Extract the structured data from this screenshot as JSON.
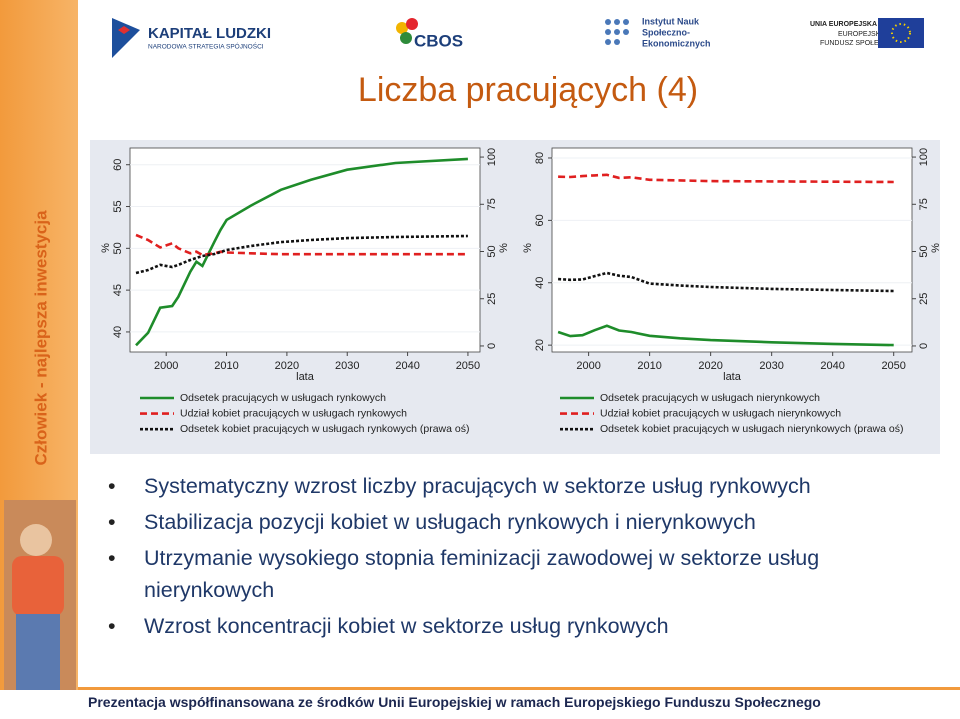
{
  "logos": {
    "kapital_ludzki": [
      "KAPITAŁ LUDZKI",
      "NARODOWA STRATEGIA SPÓJNOŚCI"
    ],
    "cbos": "CBOS",
    "isns": [
      "Instytut Nauk",
      "Społeczno-",
      "Ekonomicznych"
    ],
    "eu": [
      "UNIA EUROPEJSKA",
      "EUROPEJSKI",
      "FUNDUSZ SPOŁECZNY"
    ]
  },
  "sidebar": "Człowiek - najlepsza inwestycja",
  "title": "Liczba pracujących (4)",
  "bullets": [
    "Systematyczny wzrost liczby pracujących w sektorze usług rynkowych",
    "Stabilizacja pozycji kobiet w usługach rynkowych i nierynkowych",
    "Utrzymanie wysokiego stopnia feminizacji zawodowej w sektorze usług nierynkowych",
    "Wzrost koncentracji kobiet w sektorze usług rynkowych"
  ],
  "footer": "Prezentacja współfinansowana ze środków Unii Europejskiej w ramach Europejskiego Funduszu Społecznego",
  "chart_data": [
    {
      "type": "line",
      "xlabel": "lata",
      "ylabel": "%",
      "y2label": "%",
      "x": [
        1995,
        1997,
        1999,
        2001,
        2002,
        2004,
        2005,
        2006,
        2008,
        2009,
        2010,
        2014,
        2019,
        2024,
        2030,
        2038,
        2050
      ],
      "xlim": [
        1994,
        2052
      ],
      "xticks": [
        2000,
        2010,
        2020,
        2030,
        2040,
        2050
      ],
      "ylim": [
        37.6,
        62
      ],
      "yticks": [
        40,
        45,
        50,
        55,
        60
      ],
      "y2lim": [
        -3.2,
        104.8
      ],
      "y2ticks": [
        0,
        25,
        50,
        75,
        100
      ],
      "grid": true,
      "series": [
        {
          "name": "Odsetek pracujących w usługach rynkowych",
          "color": "#1e8c2a",
          "style": "solid",
          "values": [
            38.4,
            39.9,
            42.9,
            43.1,
            44.2,
            47.2,
            48.4,
            47.9,
            50.8,
            52.2,
            53.4,
            55.1,
            57.0,
            58.2,
            59.4,
            60.2,
            60.7
          ]
        },
        {
          "name": "Udział kobiet pracujących w usługach rynkowych",
          "color": "#e02020",
          "style": "dash",
          "values": [
            51.6,
            51.0,
            50.1,
            50.6,
            50.0,
            49.4,
            49.6,
            49.2,
            49.4,
            49.6,
            49.5,
            49.4,
            49.3,
            49.3,
            49.3,
            49.3,
            49.3
          ]
        },
        {
          "name": "Odsetek kobiet pracujących w usługach rynkowych (prawa oś)",
          "color": "#111111",
          "style": "dot",
          "axis": "y2",
          "values": [
            38.6,
            40.2,
            42.9,
            41.8,
            42.9,
            45.5,
            46.6,
            47.6,
            48.7,
            49.7,
            50.8,
            52.9,
            55.0,
            56.1,
            57.1,
            57.7,
            58.2
          ]
        }
      ]
    },
    {
      "type": "line",
      "xlabel": "lata",
      "ylabel": "%",
      "y2label": "%",
      "x": [
        1995,
        1997,
        1999,
        2001,
        2003,
        2005,
        2007,
        2010,
        2015,
        2020,
        2030,
        2040,
        2050
      ],
      "xlim": [
        1994,
        2053
      ],
      "xticks": [
        2000,
        2010,
        2020,
        2030,
        2040,
        2050
      ],
      "ylim": [
        17.8,
        83.2
      ],
      "yticks": [
        20,
        40,
        60,
        80
      ],
      "y2lim": [
        -3.2,
        104.8
      ],
      "y2ticks": [
        0,
        25,
        50,
        75,
        100
      ],
      "grid": true,
      "series": [
        {
          "name": "Odsetek pracujących w usługach nierynkowych",
          "color": "#1e8c2a",
          "style": "solid",
          "values": [
            24.2,
            22.9,
            23.2,
            24.8,
            26.2,
            24.7,
            24.2,
            23.0,
            22.2,
            21.6,
            20.9,
            20.4,
            20.0
          ]
        },
        {
          "name": "Udział kobiet pracujących w usługach nierynkowych",
          "color": "#e02020",
          "style": "dash",
          "values": [
            74.0,
            73.9,
            74.2,
            74.4,
            74.6,
            73.6,
            73.8,
            73.0,
            72.8,
            72.6,
            72.5,
            72.4,
            72.3
          ]
        },
        {
          "name": "Odsetek kobiet pracujących w usługach nierynkowych (prawa oś)",
          "color": "#111111",
          "style": "dot",
          "axis": "y2",
          "values": [
            35.4,
            35.0,
            35.2,
            37.0,
            38.6,
            37.2,
            36.5,
            33.0,
            32.0,
            31.2,
            30.2,
            29.6,
            29.1
          ]
        }
      ]
    }
  ]
}
